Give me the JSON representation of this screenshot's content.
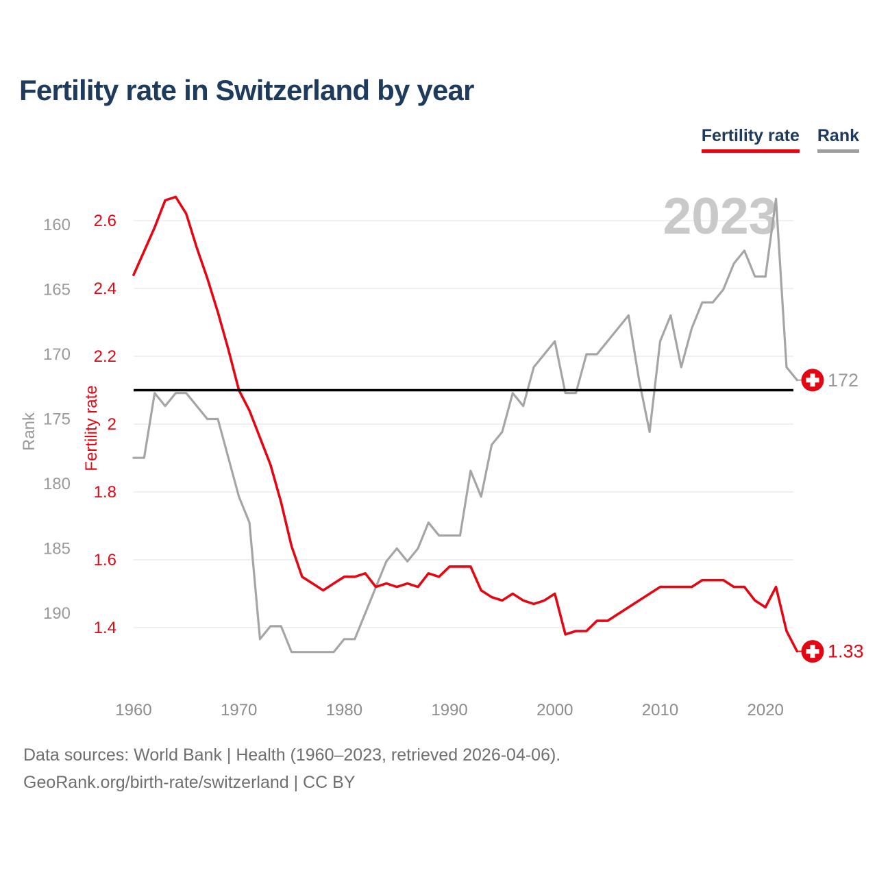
{
  "title": "Fertility rate in Switzerland by year",
  "watermark": "2023",
  "legend": [
    {
      "label": "Fertility rate",
      "color": "#e30613"
    },
    {
      "label": "Rank",
      "color": "#9e9e9e"
    }
  ],
  "footer": {
    "line1": "Data sources: World Bank | Health (1960–2023, retrieved 2026-04-06).",
    "line2": "GeoRank.org/birth-rate/switzerland | CC BY"
  },
  "chart_data": {
    "type": "line",
    "title": "Fertility rate in Switzerland by year",
    "grid": "horizontal",
    "legend_position": "top-right",
    "years": [
      1960,
      1961,
      1962,
      1963,
      1964,
      1965,
      1966,
      1967,
      1968,
      1969,
      1970,
      1971,
      1972,
      1973,
      1974,
      1975,
      1976,
      1977,
      1978,
      1979,
      1980,
      1981,
      1982,
      1983,
      1984,
      1985,
      1986,
      1987,
      1988,
      1989,
      1990,
      1991,
      1992,
      1993,
      1994,
      1995,
      1996,
      1997,
      1998,
      1999,
      2000,
      2001,
      2002,
      2003,
      2004,
      2005,
      2006,
      2007,
      2008,
      2009,
      2010,
      2011,
      2012,
      2013,
      2014,
      2015,
      2016,
      2017,
      2018,
      2019,
      2020,
      2021,
      2022,
      2023
    ],
    "x_ticks": [
      1960,
      1970,
      1980,
      1990,
      2000,
      2010,
      2020
    ],
    "series": [
      {
        "name": "Fertility rate",
        "axis": "fertility",
        "color": "#e30613",
        "label_color": "#e30613",
        "end_label": "1.33",
        "values": [
          2.44,
          2.51,
          2.58,
          2.66,
          2.67,
          2.62,
          2.52,
          2.43,
          2.33,
          2.22,
          2.1,
          2.04,
          1.96,
          1.88,
          1.77,
          1.64,
          1.55,
          1.53,
          1.51,
          1.53,
          1.55,
          1.55,
          1.56,
          1.52,
          1.53,
          1.52,
          1.53,
          1.52,
          1.56,
          1.55,
          1.58,
          1.58,
          1.58,
          1.51,
          1.49,
          1.48,
          1.5,
          1.48,
          1.47,
          1.48,
          1.5,
          1.38,
          1.39,
          1.39,
          1.42,
          1.42,
          1.44,
          1.46,
          1.48,
          1.5,
          1.52,
          1.52,
          1.52,
          1.52,
          1.54,
          1.54,
          1.54,
          1.52,
          1.52,
          1.48,
          1.46,
          1.52,
          1.39,
          1.33
        ]
      },
      {
        "name": "Rank",
        "axis": "rank",
        "color": "#a5a5a5",
        "label_color": "#999999",
        "end_label": "172",
        "values": [
          178,
          178,
          173,
          174,
          173,
          173,
          174,
          175,
          175,
          178,
          181,
          183,
          192,
          191,
          191,
          193,
          193,
          193,
          193,
          193,
          192,
          192,
          190,
          188,
          186,
          185,
          186,
          185,
          183,
          184,
          184,
          184,
          179,
          181,
          177,
          176,
          173,
          174,
          171,
          170,
          169,
          173,
          173,
          170,
          170,
          169,
          168,
          167,
          172,
          176,
          169,
          167,
          171,
          168,
          166,
          166,
          165,
          163,
          162,
          164,
          164,
          158,
          171,
          172
        ]
      }
    ],
    "axes": {
      "fertility": {
        "label": "Fertility rate",
        "color": "#e30613",
        "ticks": [
          2.6,
          2.4,
          2.2,
          2,
          1.8,
          1.6,
          1.4
        ]
      },
      "rank": {
        "label": "Rank",
        "color": "#999999",
        "ticks": [
          160,
          165,
          170,
          175,
          180,
          185,
          190
        ],
        "inverted": true
      }
    },
    "reference_line": {
      "value": 2.1,
      "color": "#000000"
    },
    "marker": {
      "shape": "swiss-cross-circle",
      "fill": "#e30613",
      "cross_color": "#ffffff"
    }
  }
}
